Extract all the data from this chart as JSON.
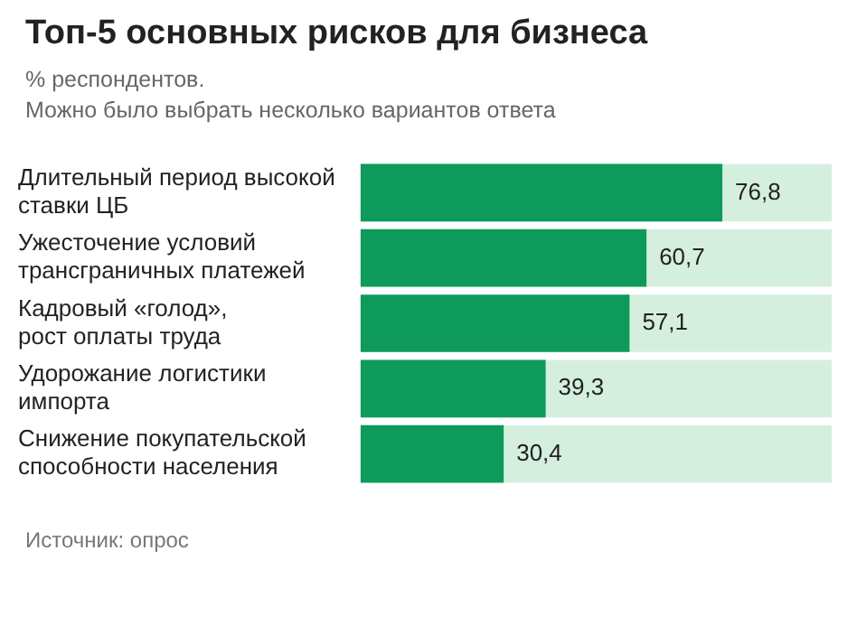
{
  "chart_data": {
    "type": "bar",
    "orientation": "horizontal",
    "title": "Топ-5 основных рисков для бизнеса",
    "subtitle": "% респондентов.\nМожно было выбрать несколько вариантов ответа",
    "categories": [
      "Длительный период высокой\nставки ЦБ",
      "Ужесточение условий\nтрансграничных платежей",
      "Кадровый «голод»,\nрост оплаты труда",
      "Удорожание логистики\nимпорта",
      "Снижение покупательской\nспособности населения"
    ],
    "values": [
      76.8,
      60.7,
      57.1,
      39.3,
      30.4
    ],
    "color": "#0e9a5b",
    "value_labels": [
      "76,8",
      "60,7",
      "57,1",
      "39,3",
      "30,4"
    ],
    "xlim": [
      0,
      100
    ],
    "tick_labels": "y",
    "annotations": [
      "Источник: опрос"
    ]
  }
}
